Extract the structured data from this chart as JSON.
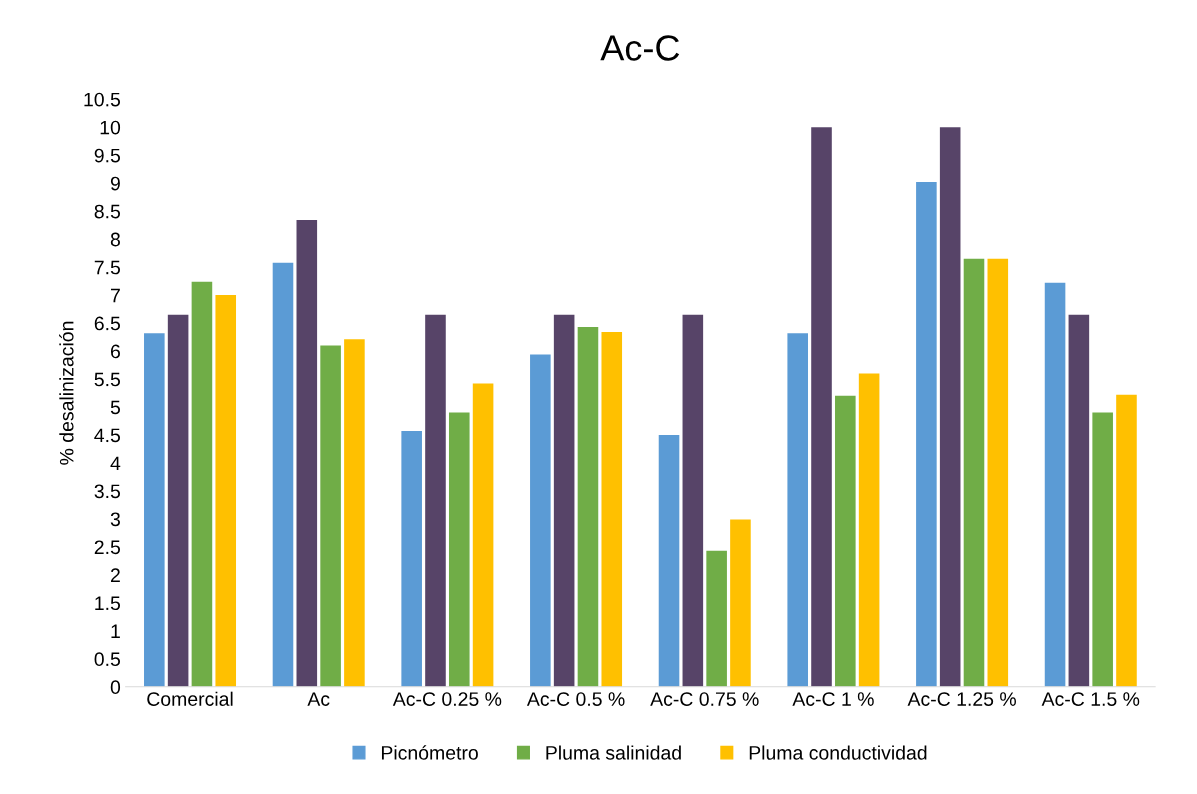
{
  "chart_data": {
    "type": "bar",
    "title": "Ac-C",
    "ylabel": "% desalinización",
    "categories": [
      "Comercial",
      "Ac",
      "Ac-C 0.25 %",
      "Ac-C 0.5 %",
      "Ac-C 0.75 %",
      "Ac-C 1 %",
      "Ac-C 1.25 %",
      "Ac-C 1.5 %"
    ],
    "series": [
      {
        "name": "Picnómetro",
        "color": "#5b9bd5",
        "values": [
          6.32,
          7.58,
          4.57,
          5.94,
          4.5,
          6.32,
          9.02,
          7.22
        ]
      },
      {
        "color": "#574468",
        "values": [
          6.65,
          8.34,
          6.65,
          6.65,
          6.65,
          10.0,
          10.0,
          6.65
        ]
      },
      {
        "name": "Pluma salinidad",
        "color": "#70ad47",
        "values": [
          7.24,
          6.1,
          4.9,
          6.43,
          2.43,
          5.2,
          7.65,
          4.9
        ]
      },
      {
        "name": "Pluma conductividad",
        "color": "#ffc000",
        "values": [
          7.0,
          6.21,
          5.42,
          6.34,
          2.99,
          5.6,
          7.65,
          5.22
        ]
      }
    ],
    "ylim": [
      0,
      10.5
    ],
    "yticks": [
      0,
      0.5,
      1,
      1.5,
      2,
      2.5,
      3,
      3.5,
      4,
      4.5,
      5,
      5.5,
      6,
      6.5,
      7,
      7.5,
      8,
      8.5,
      9,
      9.5,
      10,
      10.5
    ],
    "grid": false,
    "legend": "bottom"
  }
}
